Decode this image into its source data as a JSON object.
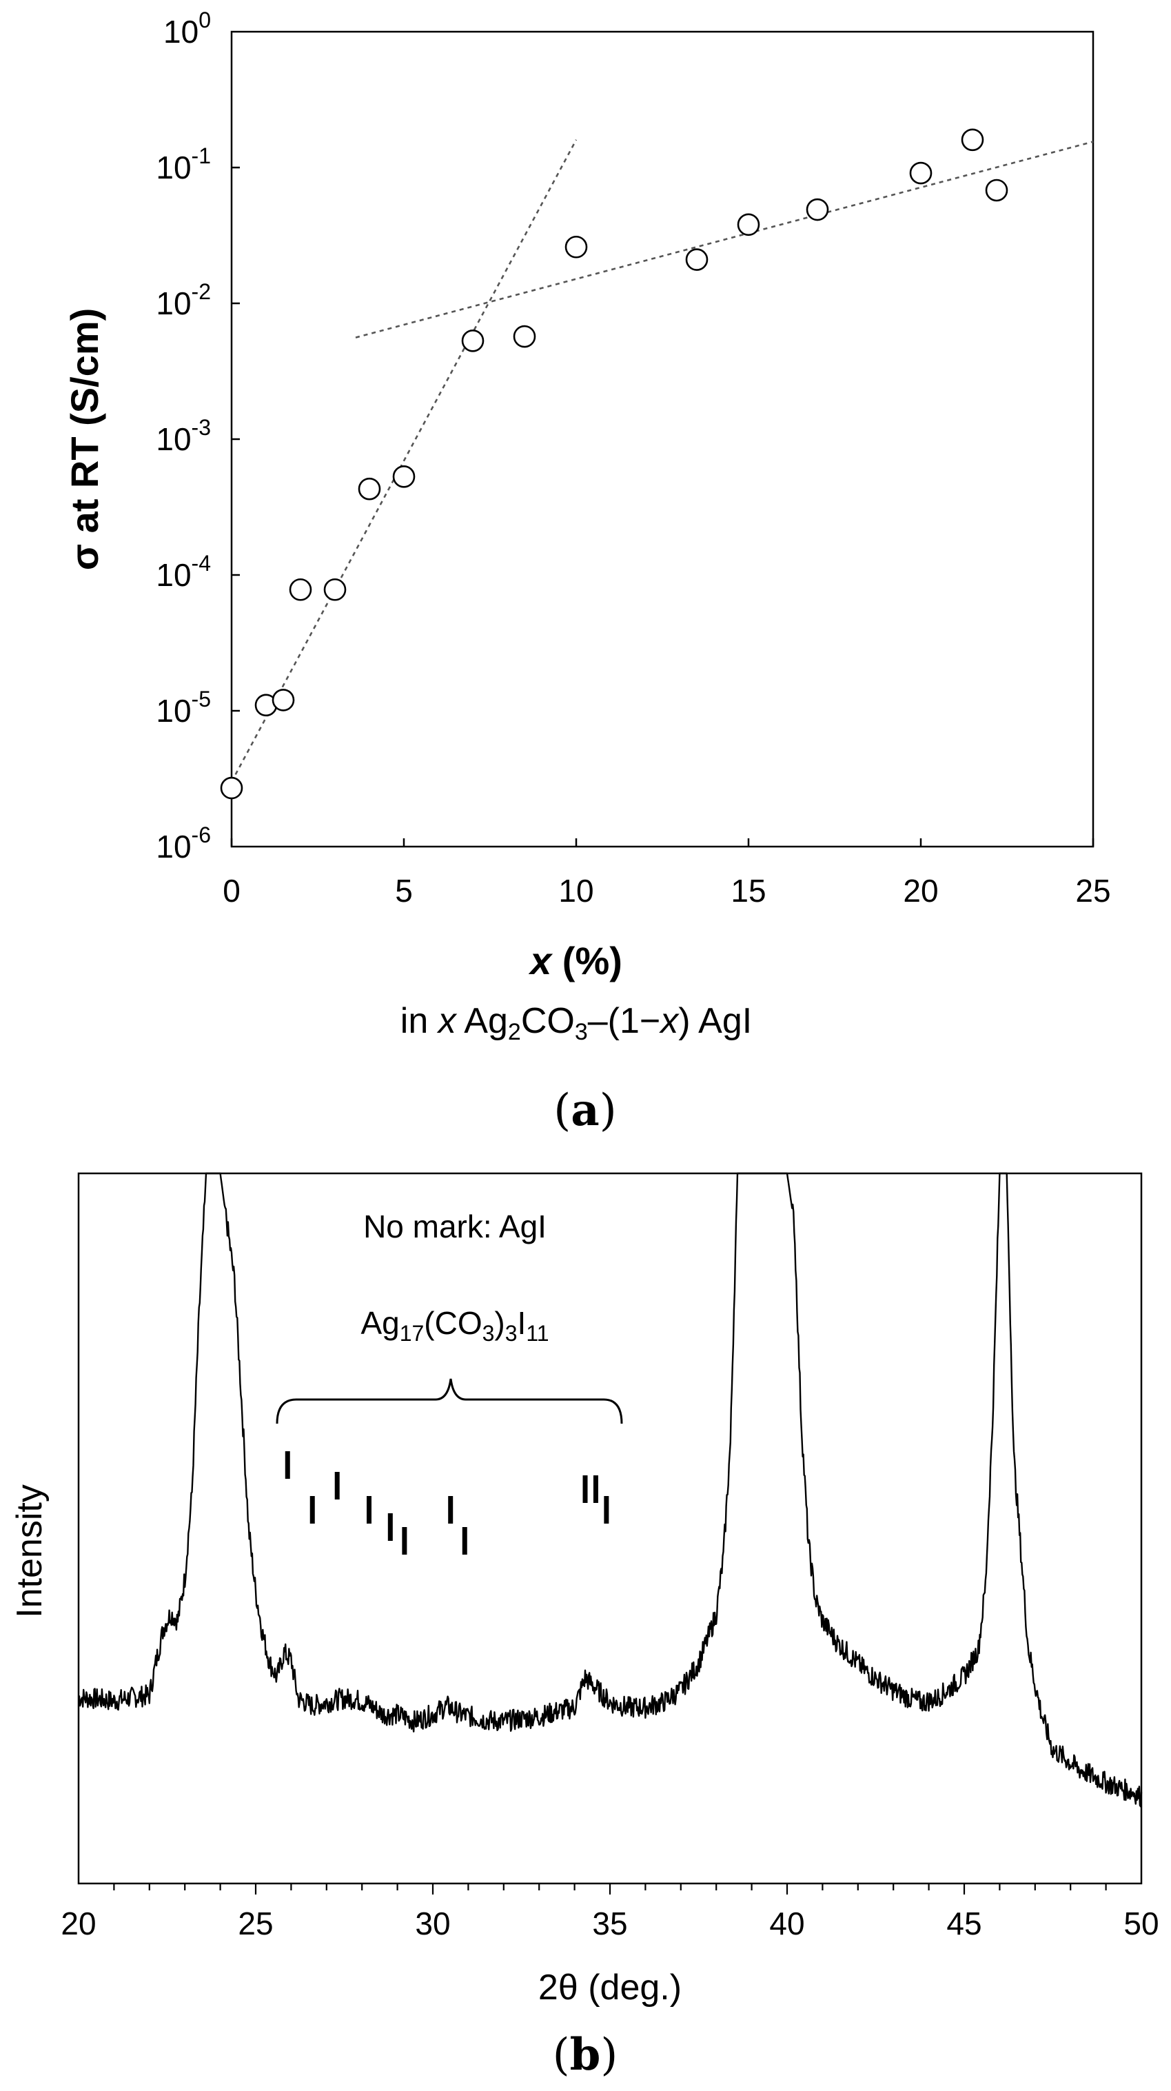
{
  "chart_data": [
    {
      "type": "scatter",
      "panel_label": "a",
      "ylabel": "σ at RT (S/cm)",
      "xlabel_line1": "x (%)",
      "xlabel_line2": "in x Ag2CO3–(1−x) AgI",
      "xlim": [
        0,
        25
      ],
      "ylim": [
        1e-06,
        1
      ],
      "yscale": "log",
      "grid": false,
      "x_ticks": [
        "0",
        "5",
        "10",
        "15",
        "20",
        "25"
      ],
      "y_ticks": [
        {
          "base": "10",
          "exp": "0",
          "value": 1
        },
        {
          "base": "10",
          "exp": "-1",
          "value": 0.1
        },
        {
          "base": "10",
          "exp": "-2",
          "value": 0.01
        },
        {
          "base": "10",
          "exp": "-3",
          "value": 0.001
        },
        {
          "base": "10",
          "exp": "-4",
          "value": 0.0001
        },
        {
          "base": "10",
          "exp": "-5",
          "value": 1e-05
        },
        {
          "base": "10",
          "exp": "-6",
          "value": 1e-06
        }
      ],
      "points": [
        {
          "x": 0,
          "y": 2.7e-06
        },
        {
          "x": 1,
          "y": 1.1e-05
        },
        {
          "x": 1.5,
          "y": 1.2e-05
        },
        {
          "x": 2,
          "y": 7.8e-05
        },
        {
          "x": 3,
          "y": 7.8e-05
        },
        {
          "x": 4,
          "y": 0.00043
        },
        {
          "x": 5,
          "y": 0.00053
        },
        {
          "x": 7,
          "y": 0.0053
        },
        {
          "x": 8.5,
          "y": 0.0057
        },
        {
          "x": 10,
          "y": 0.026
        },
        {
          "x": 13.5,
          "y": 0.021
        },
        {
          "x": 15,
          "y": 0.038
        },
        {
          "x": 17,
          "y": 0.049
        },
        {
          "x": 20,
          "y": 0.091
        },
        {
          "x": 21.5,
          "y": 0.16
        },
        {
          "x": 22.2,
          "y": 0.068
        }
      ],
      "fit_lines": [
        {
          "x": [
            0,
            10
          ],
          "y": [
            3e-06,
            0.16
          ]
        },
        {
          "x": [
            3.6,
            25
          ],
          "y": [
            0.0056,
            0.155
          ]
        }
      ]
    },
    {
      "type": "line",
      "panel_label": "b",
      "ylabel": "Intensity",
      "xlabel": "2θ (deg.)",
      "xlim": [
        20,
        50
      ],
      "x_ticks": [
        "20",
        "25",
        "30",
        "35",
        "40",
        "45",
        "50"
      ],
      "annotations": {
        "no_mark": "No mark: AgI",
        "phase": "Ag17(CO3)3I11"
      },
      "series": [
        {
          "x": [
            20,
            20.5,
            21,
            21.5,
            22,
            22.2,
            22.4,
            22.6,
            22.8,
            23,
            23.2,
            23.4,
            23.6,
            24,
            24.4,
            24.6,
            24.8,
            25,
            25.2,
            25.4,
            25.6,
            25.8,
            26,
            26.2,
            26.6,
            27,
            27.4,
            27.8,
            28.2,
            28.6,
            29,
            29.5,
            30,
            30.4,
            30.8,
            31.5,
            32,
            32.5,
            33,
            33.5,
            34,
            34.3,
            34.6,
            35,
            35.5,
            36,
            36.5,
            37,
            37.5,
            37.8,
            38,
            38.2,
            38.4,
            38.6,
            39.5,
            40,
            40.2,
            40.4,
            40.6,
            40.8,
            41,
            41.4,
            41.8,
            42.2,
            42.6,
            43,
            43.4,
            43.8,
            44.2,
            44.6,
            45,
            45.4,
            45.6,
            45.8,
            46,
            46.2,
            46.4,
            46.8,
            47,
            47.2,
            47.5,
            47.8,
            48.2,
            48.6,
            49,
            49.4,
            49.8,
            50
          ],
          "y": [
            2.62,
            2.6,
            2.57,
            2.62,
            2.65,
            3.15,
            3.6,
            3.8,
            3.7,
            4.3,
            5.5,
            8.0,
            10,
            10,
            8.5,
            6.8,
            5.0,
            4.1,
            3.5,
            3.1,
            2.9,
            3.25,
            3.15,
            2.6,
            2.5,
            2.55,
            2.6,
            2.6,
            2.52,
            2.38,
            2.38,
            2.28,
            2.38,
            2.5,
            2.38,
            2.3,
            2.28,
            2.32,
            2.35,
            2.42,
            2.48,
            2.9,
            2.75,
            2.55,
            2.48,
            2.48,
            2.55,
            2.72,
            3.1,
            3.5,
            3.8,
            4.6,
            6.2,
            10,
            10,
            10,
            9.3,
            6.5,
            4.8,
            4.0,
            3.7,
            3.4,
            3.2,
            3.0,
            2.85,
            2.72,
            2.62,
            2.55,
            2.6,
            2.75,
            2.92,
            3.3,
            4.2,
            6.5,
            10,
            10,
            6.0,
            3.35,
            2.8,
            2.35,
            1.88,
            1.78,
            1.62,
            1.52,
            1.42,
            1.34,
            1.28,
            1.22
          ]
        }
      ],
      "peak_marks": [
        {
          "x": 25.9,
          "level": "high"
        },
        {
          "x": 26.6,
          "level": "mid"
        },
        {
          "x": 27.3,
          "level": "high2"
        },
        {
          "x": 28.2,
          "level": "mid"
        },
        {
          "x": 28.8,
          "level": "low"
        },
        {
          "x": 29.2,
          "level": "low2"
        },
        {
          "x": 30.5,
          "level": "mid"
        },
        {
          "x": 30.9,
          "level": "low2"
        },
        {
          "x": 34.3,
          "level": "high3"
        },
        {
          "x": 34.6,
          "level": "high3"
        },
        {
          "x": 34.9,
          "level": "mid"
        }
      ]
    }
  ]
}
